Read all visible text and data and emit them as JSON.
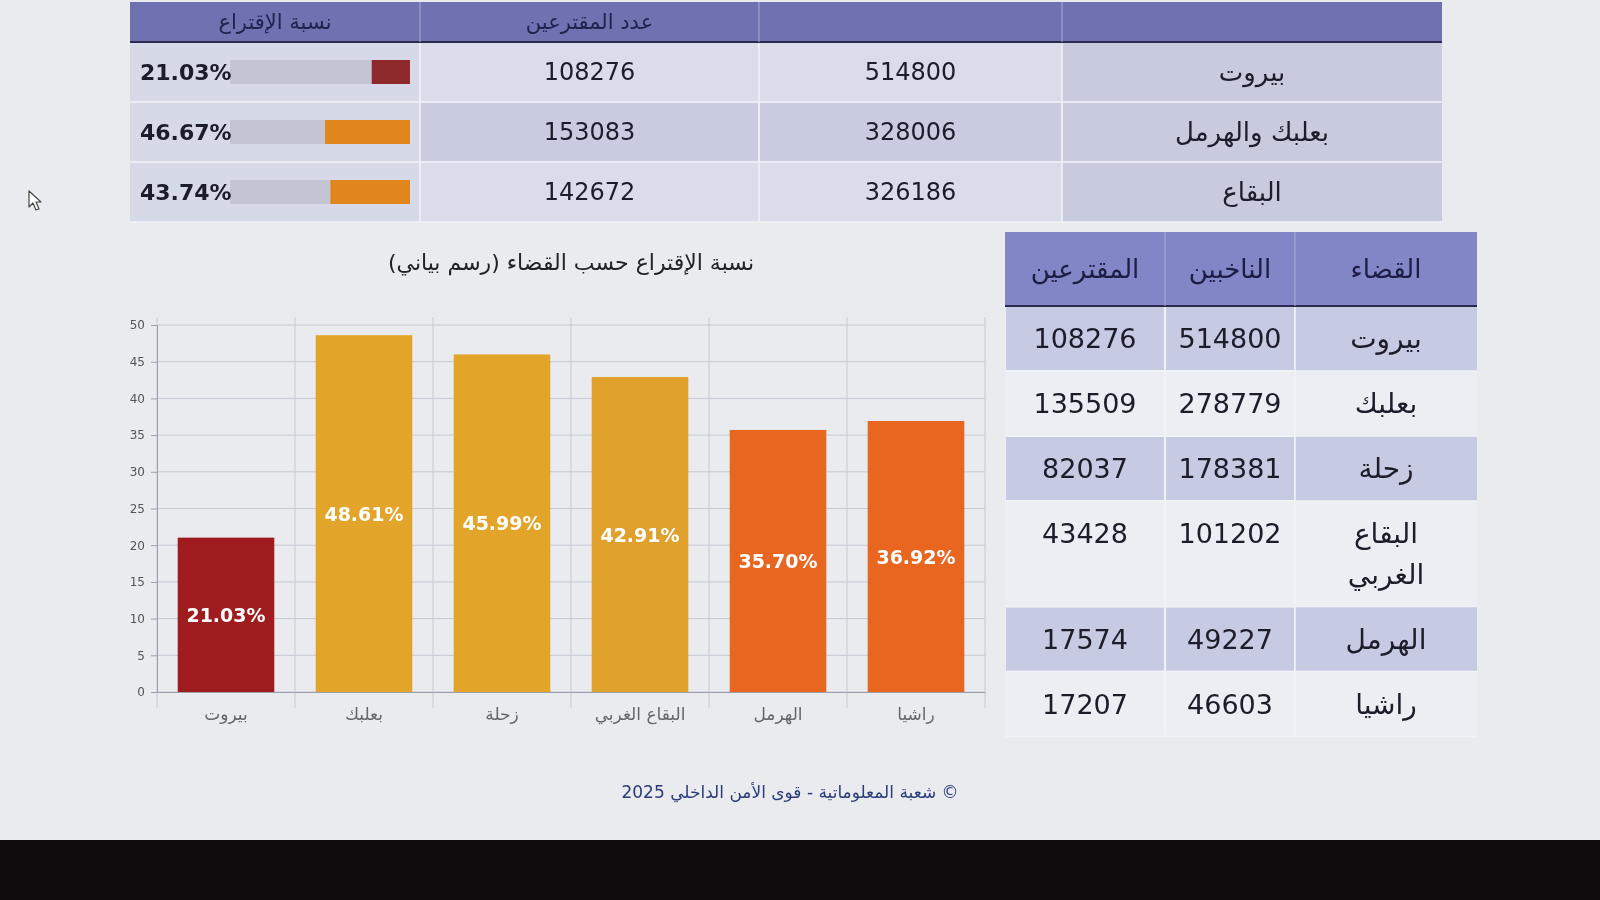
{
  "chart_data": [
    {
      "type": "other",
      "categories": [
        "بيروت",
        "بعلبك والهرمل",
        "البقاع"
      ],
      "series": [
        {
          "colors": [
            "#dadcea",
            "#c9cce0",
            "#dadcea"
          ],
          "values": [
            514800,
            328006,
            326186
          ]
        },
        {
          "name": "عدد المقترعين",
          "colors": [
            "#dadcea",
            "#c9cce0",
            "#dadcea"
          ],
          "values": [
            108276,
            153083,
            142672
          ]
        },
        {
          "name": "نسبة الإقتراع",
          "type": "bar",
          "values": [
            21.03,
            46.67,
            43.74
          ],
          "value_labels": [
            "21.03%",
            "46.67%",
            "43.74%"
          ],
          "colors": [
            "#8e2a2c",
            "#e0861c",
            "#e0861c"
          ]
        }
      ],
      "data_labels": true
    },
    {
      "type": "bar",
      "title": "نسبة الإقتراع حسب القضاء (رسم بياني)",
      "categories": [
        "بيروت",
        "بعلبك",
        "زحلة",
        "البقاع الغربي",
        "الهرمل",
        "راشيا"
      ],
      "values": [
        21.03,
        48.61,
        45.99,
        42.91,
        35.7,
        36.92
      ],
      "value_labels": [
        "21.03%",
        "48.61%",
        "45.99%",
        "42.91%",
        "35.70%",
        "36.92%"
      ],
      "colors": [
        "#9e1c1e",
        "#e2a529",
        "#e2a529",
        "#dfa02c",
        "#e8661f",
        "#e8661f"
      ],
      "ylim": [
        0,
        50
      ],
      "yticks": [
        0,
        5,
        10,
        15,
        20,
        25,
        30,
        35,
        40,
        45,
        50
      ],
      "grid": true,
      "annotations": [
        "© شعبة المعلوماتية - قوى الأمن الداخلي 2025"
      ]
    },
    {
      "type": "other",
      "ylabel": "القضاء",
      "categories": [
        "بيروت",
        "بعلبك",
        "زحلة",
        "البقاع الغربي",
        "الهرمل",
        "راشيا"
      ],
      "series": [
        {
          "name": "الناخبين",
          "colors": [
            "#c6cae3",
            "#eceef3",
            "#c6cae3",
            "#eceef3",
            "#c6cae3",
            "#eceef3"
          ],
          "values": [
            514800,
            278779,
            178381,
            101202,
            49227,
            46603
          ]
        },
        {
          "name": "المقترعين",
          "colors": [
            "#c6cae3",
            "#eceef3",
            "#c6cae3",
            "#eceef3",
            "#c6cae3",
            "#eceef3"
          ],
          "values": [
            108276,
            135509,
            82037,
            43428,
            17574,
            17207
          ]
        }
      ],
      "data_labels": true
    }
  ]
}
